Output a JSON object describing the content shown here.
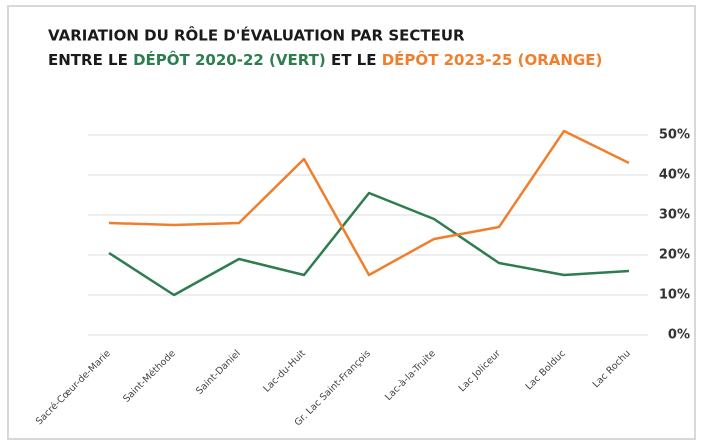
{
  "chart_data": {
    "type": "line",
    "title": "VARIATION DU RÔLE D'ÉVALUATION PAR SECTEUR",
    "subtitle_parts": [
      {
        "text": "ENTRE LE ",
        "color": "#1a1a1a"
      },
      {
        "text": "DÉPÔT 2020-22 (VERT)",
        "color": "#2e7d4f"
      },
      {
        "text": " ET LE ",
        "color": "#1a1a1a"
      },
      {
        "text": "DÉPÔT 2023-25 (ORANGE)",
        "color": "#f07f2d"
      }
    ],
    "categories": [
      "Sacré-Cœur-de-Marie",
      "Saint-Méthode",
      "Saint-Daniel",
      "Lac-du-Huit",
      "Gr. Lac Saint-François",
      "Lac-à-la-Truite",
      "Lac Joliceur",
      "Lac Bolduc",
      "Lac Rochu"
    ],
    "series": [
      {
        "color": "#2e7d4f",
        "values": [
          20.5,
          10,
          19,
          15,
          35.5,
          29,
          18,
          15,
          16
        ]
      },
      {
        "color": "#f07f2d",
        "values": [
          28,
          27.5,
          28,
          44,
          15,
          24,
          27,
          51,
          43
        ]
      }
    ],
    "ylim": [
      0,
      50
    ],
    "yticks": [
      {
        "value": 0,
        "label": "0%"
      },
      {
        "value": 10,
        "label": "10%"
      },
      {
        "value": 20,
        "label": "20%"
      },
      {
        "value": 30,
        "label": "30%"
      },
      {
        "value": 40,
        "label": "40%"
      },
      {
        "value": 50,
        "label": "50%"
      }
    ],
    "grid": true
  }
}
